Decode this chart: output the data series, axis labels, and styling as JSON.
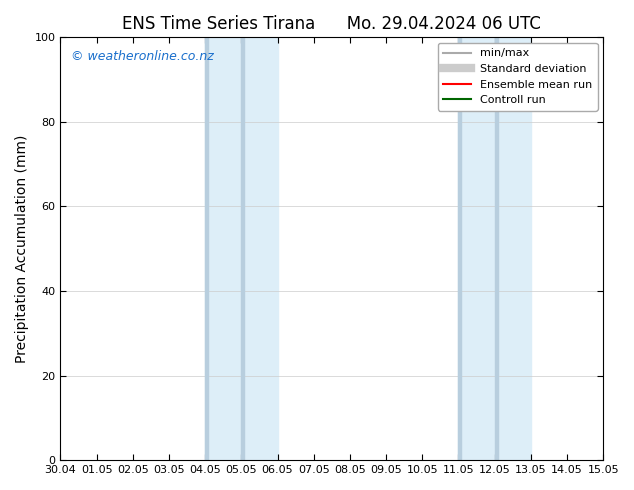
{
  "title": "ENS Time Series Tirana      Mo. 29.04.2024 06 UTC",
  "ylabel": "Precipitation Accumulation (mm)",
  "xlabel": "",
  "ylim": [
    0,
    100
  ],
  "yticks": [
    0,
    20,
    40,
    60,
    80,
    100
  ],
  "background_color": "#ffffff",
  "plot_bg_color": "#ffffff",
  "watermark": "© weatheronline.co.nz",
  "watermark_color": "#1a6fcc",
  "xtick_labels": [
    "30.04",
    "01.05",
    "02.05",
    "03.05",
    "04.05",
    "05.05",
    "06.05",
    "07.05",
    "08.05",
    "09.05",
    "10.05",
    "11.05",
    "12.05",
    "13.05",
    "14.05",
    "15.05"
  ],
  "shaded_regions": [
    {
      "x_start_label": "04.05",
      "x_end_label": "06.05",
      "color": "#ddeef8"
    },
    {
      "x_start_label": "11.05",
      "x_end_label": "13.05",
      "color": "#ddeef8"
    }
  ],
  "dark_lines": [
    {
      "x_label": "04.05",
      "color": "#b8cede"
    },
    {
      "x_label": "05.05",
      "color": "#b8cede"
    },
    {
      "x_label": "11.05",
      "color": "#b8cede"
    },
    {
      "x_label": "12.05",
      "color": "#b8cede"
    }
  ],
  "legend_items": [
    {
      "label": "min/max",
      "color": "#aaaaaa",
      "lw": 1.5,
      "ls": "-"
    },
    {
      "label": "Standard deviation",
      "color": "#cccccc",
      "lw": 6,
      "ls": "-"
    },
    {
      "label": "Ensemble mean run",
      "color": "#ff0000",
      "lw": 1.5,
      "ls": "-"
    },
    {
      "label": "Controll run",
      "color": "#006600",
      "lw": 1.5,
      "ls": "-"
    }
  ],
  "title_fontsize": 12,
  "tick_fontsize": 8,
  "ylabel_fontsize": 10
}
